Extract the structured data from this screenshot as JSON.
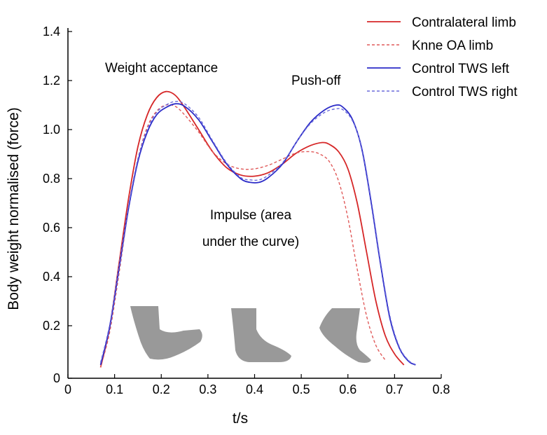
{
  "chart_data": {
    "type": "line",
    "xlabel": "t/s",
    "ylabel": "Body weight normalised (force)",
    "xlim": [
      0,
      0.8
    ],
    "ylim": [
      0,
      1.4
    ],
    "x_ticks": [
      "0",
      "0.1",
      "0.2",
      "0.3",
      "0.4",
      "0.5",
      "0.6",
      "0.7",
      "0.8"
    ],
    "y_ticks": [
      "0",
      "0.2",
      "0.4",
      "0.6",
      "0.8",
      "1.0",
      "1.2",
      "1.4"
    ],
    "y_tick_labels_shown": [
      "0",
      "0.2",
      "0.4",
      "0.6",
      "0.8",
      "1.0",
      "1.2",
      "1.4"
    ],
    "annotations": {
      "weight_acceptance": "Weight acceptance",
      "push_off": "Push-off",
      "impulse_line1": "Impulse (area",
      "impulse_line2": "under the curve)"
    },
    "legend_placement": "top-right",
    "series": [
      {
        "name": "Contralateral limb",
        "color": "#d62728",
        "dash": false,
        "points": [
          [
            0.07,
            0.03
          ],
          [
            0.09,
            0.2
          ],
          [
            0.11,
            0.46
          ],
          [
            0.13,
            0.72
          ],
          [
            0.15,
            0.93
          ],
          [
            0.17,
            1.06
          ],
          [
            0.19,
            1.13
          ],
          [
            0.21,
            1.155
          ],
          [
            0.23,
            1.14
          ],
          [
            0.25,
            1.09
          ],
          [
            0.28,
            1.0
          ],
          [
            0.31,
            0.91
          ],
          [
            0.34,
            0.845
          ],
          [
            0.37,
            0.815
          ],
          [
            0.4,
            0.81
          ],
          [
            0.43,
            0.825
          ],
          [
            0.46,
            0.86
          ],
          [
            0.49,
            0.905
          ],
          [
            0.52,
            0.935
          ],
          [
            0.545,
            0.947
          ],
          [
            0.56,
            0.94
          ],
          [
            0.58,
            0.91
          ],
          [
            0.6,
            0.84
          ],
          [
            0.62,
            0.7
          ],
          [
            0.64,
            0.5
          ],
          [
            0.66,
            0.3
          ],
          [
            0.68,
            0.16
          ],
          [
            0.7,
            0.085
          ],
          [
            0.72,
            0.04
          ]
        ]
      },
      {
        "name": "Knne OA limb",
        "color": "#e05a5a",
        "dash": true,
        "points": [
          [
            0.07,
            0.03
          ],
          [
            0.09,
            0.18
          ],
          [
            0.11,
            0.42
          ],
          [
            0.13,
            0.68
          ],
          [
            0.15,
            0.88
          ],
          [
            0.17,
            1.01
          ],
          [
            0.19,
            1.075
          ],
          [
            0.21,
            1.1
          ],
          [
            0.23,
            1.095
          ],
          [
            0.25,
            1.06
          ],
          [
            0.28,
            0.99
          ],
          [
            0.31,
            0.91
          ],
          [
            0.34,
            0.86
          ],
          [
            0.37,
            0.84
          ],
          [
            0.4,
            0.84
          ],
          [
            0.43,
            0.855
          ],
          [
            0.46,
            0.88
          ],
          [
            0.49,
            0.905
          ],
          [
            0.52,
            0.91
          ],
          [
            0.54,
            0.9
          ],
          [
            0.56,
            0.87
          ],
          [
            0.58,
            0.79
          ],
          [
            0.6,
            0.64
          ],
          [
            0.62,
            0.43
          ],
          [
            0.64,
            0.24
          ],
          [
            0.66,
            0.12
          ],
          [
            0.68,
            0.06
          ]
        ]
      },
      {
        "name": "Control TWS left",
        "color": "#2c2cc8",
        "dash": false,
        "points": [
          [
            0.07,
            0.04
          ],
          [
            0.09,
            0.2
          ],
          [
            0.11,
            0.44
          ],
          [
            0.13,
            0.68
          ],
          [
            0.15,
            0.87
          ],
          [
            0.17,
            0.99
          ],
          [
            0.19,
            1.06
          ],
          [
            0.21,
            1.09
          ],
          [
            0.23,
            1.105
          ],
          [
            0.25,
            1.095
          ],
          [
            0.28,
            1.04
          ],
          [
            0.31,
            0.95
          ],
          [
            0.34,
            0.86
          ],
          [
            0.37,
            0.8
          ],
          [
            0.39,
            0.785
          ],
          [
            0.41,
            0.785
          ],
          [
            0.43,
            0.805
          ],
          [
            0.46,
            0.86
          ],
          [
            0.49,
            0.95
          ],
          [
            0.52,
            1.03
          ],
          [
            0.55,
            1.08
          ],
          [
            0.575,
            1.1
          ],
          [
            0.59,
            1.09
          ],
          [
            0.61,
            1.04
          ],
          [
            0.63,
            0.92
          ],
          [
            0.65,
            0.7
          ],
          [
            0.67,
            0.45
          ],
          [
            0.69,
            0.23
          ],
          [
            0.71,
            0.11
          ],
          [
            0.73,
            0.055
          ],
          [
            0.745,
            0.04
          ]
        ]
      },
      {
        "name": "Control TWS right",
        "color": "#6b6bdc",
        "dash": true,
        "points": [
          [
            0.07,
            0.05
          ],
          [
            0.09,
            0.21
          ],
          [
            0.11,
            0.45
          ],
          [
            0.13,
            0.69
          ],
          [
            0.15,
            0.88
          ],
          [
            0.17,
            1.0
          ],
          [
            0.19,
            1.07
          ],
          [
            0.21,
            1.1
          ],
          [
            0.23,
            1.115
          ],
          [
            0.25,
            1.105
          ],
          [
            0.28,
            1.05
          ],
          [
            0.31,
            0.955
          ],
          [
            0.34,
            0.865
          ],
          [
            0.37,
            0.805
          ],
          [
            0.39,
            0.795
          ],
          [
            0.41,
            0.795
          ],
          [
            0.43,
            0.815
          ],
          [
            0.46,
            0.865
          ],
          [
            0.49,
            0.95
          ],
          [
            0.52,
            1.025
          ],
          [
            0.55,
            1.07
          ],
          [
            0.575,
            1.085
          ],
          [
            0.59,
            1.08
          ],
          [
            0.61,
            1.035
          ],
          [
            0.63,
            0.925
          ],
          [
            0.65,
            0.71
          ],
          [
            0.67,
            0.46
          ],
          [
            0.69,
            0.24
          ],
          [
            0.71,
            0.115
          ],
          [
            0.73,
            0.058
          ],
          [
            0.748,
            0.04
          ]
        ]
      }
    ]
  }
}
